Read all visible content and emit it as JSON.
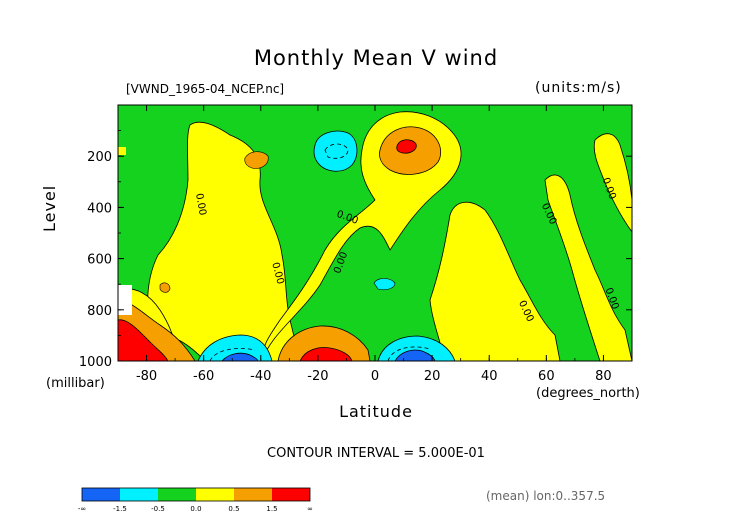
{
  "title": "Monthly Mean V wind",
  "file_label": "[VWND_1965-04_NCEP.nc]",
  "units_label": "(units:m/s)",
  "contour_interval": "CONTOUR INTERVAL = 5.000E-01",
  "footer_note": "(mean) lon:0..357.5",
  "colors": {
    "lt_neg1_5": "#1464f5",
    "neg1_5_to_neg0_5": "#00f0ff",
    "neg0_5_to_0_0": "#14d21e",
    "0_0_to_0_5": "#ffff00",
    "0_5_to_1_5": "#f5a000",
    "gt_1_5": "#ff0000"
  },
  "chart_data": {
    "type": "contour",
    "title": "Monthly Mean V wind",
    "xlabel": "Latitude",
    "ylabel": "Level",
    "x_unit": "(degrees_north)",
    "y_unit": "(millibar)",
    "xlim": [
      -90,
      90
    ],
    "ylim": [
      1000,
      0
    ],
    "x_ticks": [
      "-80",
      "-60",
      "-40",
      "-20",
      "0",
      "20",
      "40",
      "60",
      "80"
    ],
    "y_ticks": [
      "200",
      "400",
      "600",
      "800",
      "1000"
    ],
    "contour_labels": [
      "0.00",
      "0.00",
      "0.00",
      "0.00",
      "0.00",
      "0.00",
      "0.00",
      "0.00"
    ],
    "colorbar": {
      "labels": [
        "-∞",
        "-1.5",
        "-0.5",
        "0.0",
        "0.5",
        "1.5",
        "∞"
      ]
    },
    "regions": [
      {
        "sign": "negative",
        "lat": [
          -90,
          -75
        ],
        "level": [
          0,
          1000
        ]
      },
      {
        "sign": "positive",
        "lat": [
          -72,
          -40
        ],
        "level": [
          0,
          1000
        ]
      },
      {
        "sign": "negative",
        "lat": [
          -40,
          -10
        ],
        "level": [
          0,
          700
        ]
      },
      {
        "sign": "negative",
        "lat": [
          -15,
          -5
        ],
        "level": [
          100,
          230
        ],
        "min": -1.0
      },
      {
        "sign": "positive",
        "lat": [
          -25,
          5
        ],
        "level": [
          800,
          1000
        ],
        "max": 2.0
      },
      {
        "sign": "negative",
        "lat": [
          -55,
          -30
        ],
        "level": [
          880,
          1000
        ],
        "min": -1.5
      },
      {
        "sign": "positive",
        "lat": [
          0,
          20
        ],
        "level": [
          120,
          400
        ],
        "max": 2.0
      },
      {
        "sign": "negative",
        "lat": [
          5,
          25
        ],
        "level": [
          880,
          1000
        ],
        "min": -2.0
      },
      {
        "sign": "positive",
        "lat": [
          25,
          60
        ],
        "level": [
          350,
          1000
        ]
      },
      {
        "sign": "negative",
        "lat": [
          60,
          90
        ],
        "level": [
          100,
          1000
        ]
      }
    ]
  }
}
